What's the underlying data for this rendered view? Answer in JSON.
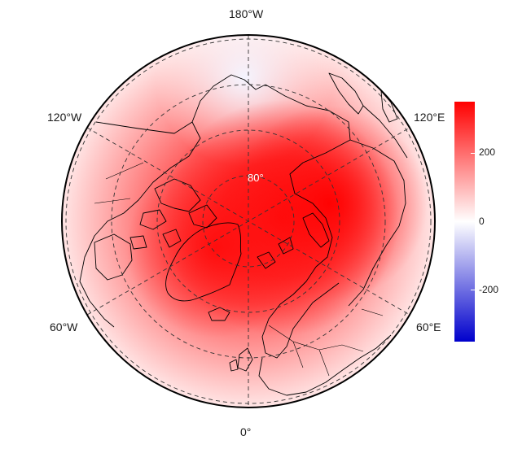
{
  "map": {
    "projection": "north-polar-stereographic",
    "longitude_labels": {
      "top": "180°W",
      "bottom": "0°",
      "upper_left": "120°W",
      "upper_right": "120°E",
      "lower_left": "60°W",
      "lower_right": "60°E"
    },
    "latitude_label": "80°",
    "field_colors": {
      "max": "#ff0000",
      "mid": "#ffffff",
      "min": "#0000cc"
    },
    "graticule_style": "dashed",
    "coastlines": "black"
  },
  "colorbar": {
    "ticks": [
      "200",
      "0",
      "-200"
    ],
    "scale_min": -350,
    "scale_max": 350,
    "tick_values": [
      200,
      0,
      -200
    ]
  }
}
